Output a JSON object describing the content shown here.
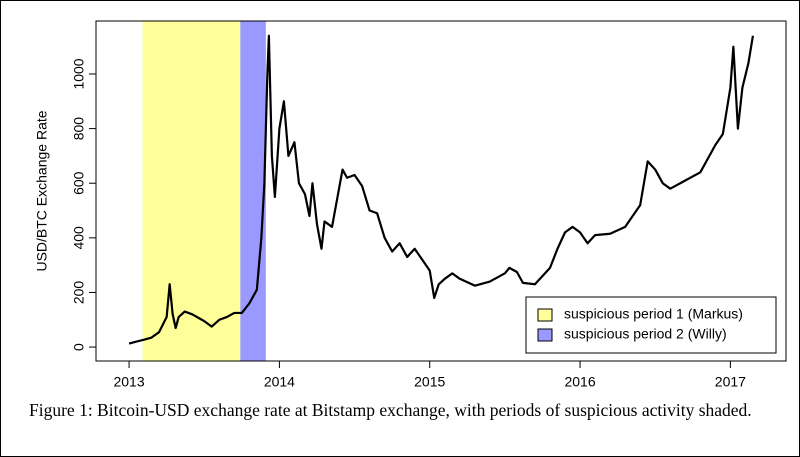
{
  "chart_data": {
    "type": "line",
    "y_label": "USD/BTC Exchange Rate",
    "caption": "Figure 1: Bitcoin-USD exchange rate at Bitstamp exchange, with periods of suspicious activity shaded.",
    "xlim": [
      2012.78,
      2017.37
    ],
    "ylim": [
      -51,
      1194
    ],
    "xticks": [
      2013,
      2014,
      2015,
      2016,
      2017
    ],
    "yticks": [
      0,
      200,
      400,
      600,
      800,
      1000
    ],
    "legend": "bottom-right",
    "periods": [
      {
        "name": "suspicious period 1 (Markus)",
        "color": "#ffff99",
        "start": 2013.09,
        "end": 2013.74
      },
      {
        "name": "suspicious period 2 (Willy)",
        "color": "#9999ff",
        "start": 2013.74,
        "end": 2013.91
      }
    ],
    "x": [
      2013.0,
      2013.05,
      2013.1,
      2013.15,
      2013.2,
      2013.25,
      2013.27,
      2013.29,
      2013.31,
      2013.33,
      2013.37,
      2013.42,
      2013.5,
      2013.55,
      2013.6,
      2013.65,
      2013.7,
      2013.75,
      2013.8,
      2013.85,
      2013.88,
      2013.9,
      2013.92,
      2013.93,
      2013.95,
      2013.97,
      2014.0,
      2014.03,
      2014.06,
      2014.1,
      2014.13,
      2014.17,
      2014.2,
      2014.22,
      2014.25,
      2014.28,
      2014.3,
      2014.35,
      2014.42,
      2014.45,
      2014.5,
      2014.55,
      2014.6,
      2014.65,
      2014.7,
      2014.75,
      2014.8,
      2014.85,
      2014.9,
      2014.95,
      2015.0,
      2015.03,
      2015.06,
      2015.1,
      2015.15,
      2015.2,
      2015.3,
      2015.4,
      2015.5,
      2015.53,
      2015.58,
      2015.62,
      2015.7,
      2015.8,
      2015.85,
      2015.9,
      2015.95,
      2016.0,
      2016.05,
      2016.1,
      2016.2,
      2016.3,
      2016.4,
      2016.45,
      2016.5,
      2016.55,
      2016.6,
      2016.7,
      2016.8,
      2016.9,
      2016.95,
      2017.0,
      2017.02,
      2017.05,
      2017.08,
      2017.12,
      2017.15
    ],
    "series": [
      {
        "color": "#000000",
        "values": [
          13,
          20,
          27,
          35,
          55,
          110,
          230,
          120,
          70,
          110,
          130,
          120,
          95,
          75,
          100,
          110,
          125,
          125,
          160,
          210,
          400,
          600,
          1000,
          1140,
          700,
          550,
          800,
          900,
          700,
          750,
          600,
          560,
          480,
          600,
          450,
          360,
          460,
          440,
          650,
          620,
          630,
          590,
          500,
          490,
          400,
          350,
          380,
          330,
          360,
          320,
          280,
          180,
          230,
          250,
          270,
          250,
          225,
          240,
          270,
          290,
          275,
          235,
          230,
          290,
          360,
          420,
          440,
          420,
          380,
          410,
          415,
          440,
          520,
          680,
          650,
          600,
          580,
          610,
          640,
          740,
          780,
          950,
          1100,
          800,
          950,
          1040,
          1140
        ]
      }
    ]
  }
}
